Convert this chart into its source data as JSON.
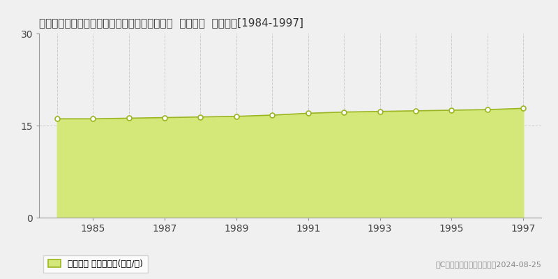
{
  "title": "徳島県鸣門市大津町吉永字三石野６０７番３外  地価公示  地価推移[1984-1997]",
  "x_data": [
    1984,
    1985,
    1986,
    1987,
    1988,
    1989,
    1990,
    1991,
    1992,
    1993,
    1994,
    1995,
    1996,
    1997
  ],
  "y_data": [
    16.1,
    16.1,
    16.2,
    16.3,
    16.4,
    16.5,
    16.7,
    17.0,
    17.2,
    17.3,
    17.4,
    17.5,
    17.6,
    17.8
  ],
  "line_color": "#9ab520",
  "fill_color": "#d4e87a",
  "marker_facecolor": "#ffffff",
  "marker_edgecolor": "#9ab520",
  "background_color": "#f0f0f0",
  "plot_bg_color": "#f0f0f0",
  "grid_color": "#cccccc",
  "ylim": [
    0,
    30
  ],
  "xlim": [
    1983.5,
    1997.5
  ],
  "yticks": [
    0,
    15,
    30
  ],
  "xticks": [
    1985,
    1987,
    1989,
    1991,
    1993,
    1995,
    1997
  ],
  "legend_label": "地価公示 平均坦単価(万円/坦)",
  "copyright_text": "（C）土地価格ドットコム　2024-08-25",
  "title_fontsize": 11,
  "tick_fontsize": 10,
  "legend_fontsize": 9,
  "copyright_fontsize": 8
}
